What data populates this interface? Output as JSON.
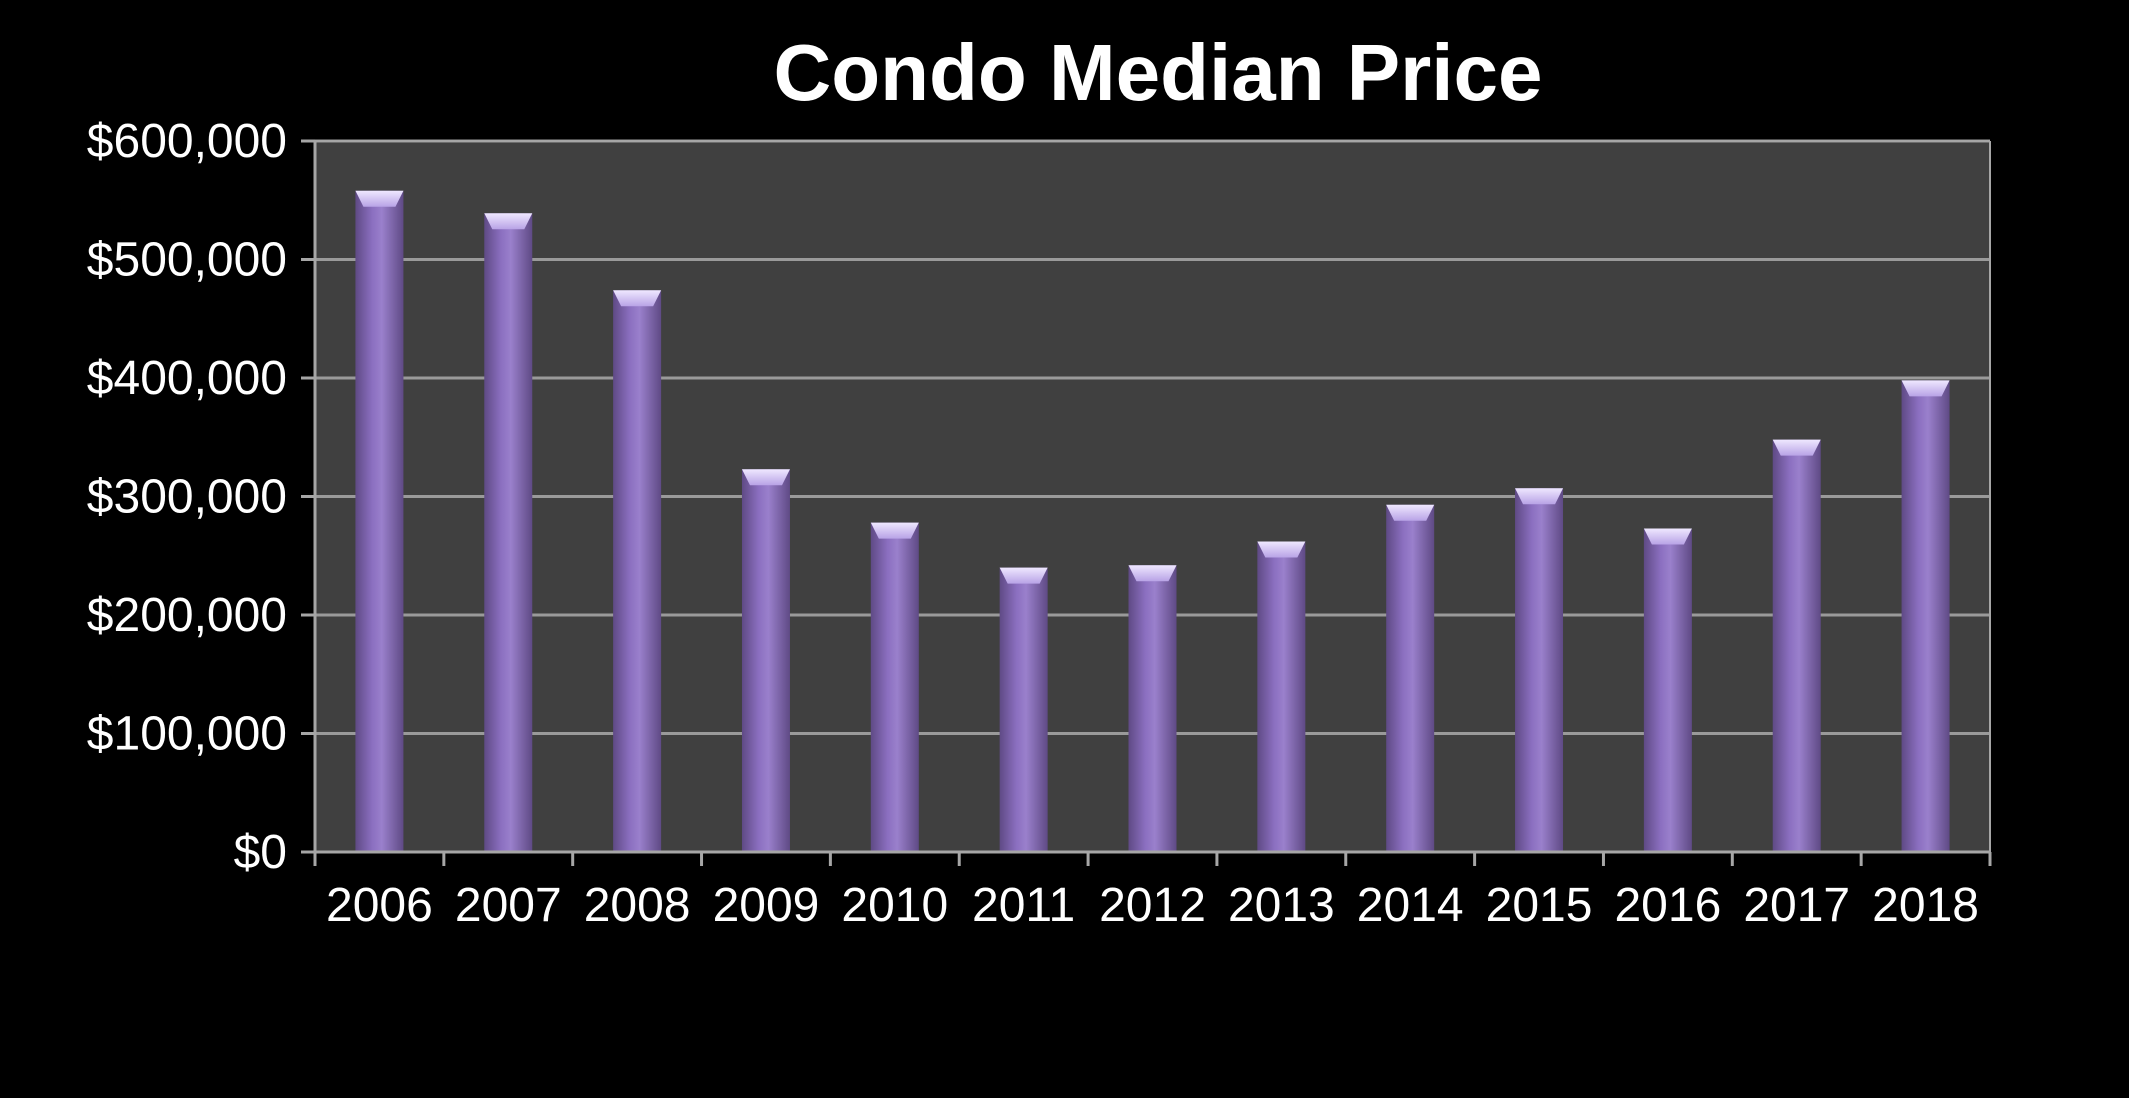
{
  "chart_data": {
    "type": "bar",
    "title": "Condo Median Price",
    "xlabel": "",
    "ylabel": "",
    "categories": [
      "2006",
      "2007",
      "2008",
      "2009",
      "2010",
      "2011",
      "2012",
      "2013",
      "2014",
      "2015",
      "2016",
      "2017",
      "2018"
    ],
    "series": [
      {
        "values": [
          558000,
          539000,
          474000,
          323000,
          278000,
          240000,
          242000,
          262000,
          293000,
          307000,
          273000,
          348000,
          398000
        ]
      }
    ],
    "ylim": [
      0,
      600000
    ],
    "yticks": [
      0,
      100000,
      200000,
      300000,
      400000,
      500000,
      600000
    ],
    "ytick_labels": [
      "$0",
      "$100,000",
      "$200,000",
      "$300,000",
      "$400,000",
      "$500,000",
      "$600,000"
    ],
    "grid": true,
    "legend": "none",
    "colors": {
      "background": "#000000",
      "plot_area": "#404040",
      "gridline": "#9a9a9a",
      "axis": "#a6a6a6",
      "bar": "#8064a2",
      "bar_light": "#a58fd0",
      "bar_dark": "#5f4a85",
      "bar_cap": "#d9cdf3",
      "text": "#ffffff"
    }
  }
}
